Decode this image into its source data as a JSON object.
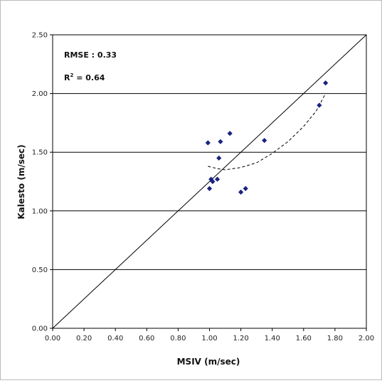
{
  "chart_data": {
    "type": "scatter",
    "xlabel": "MSIV (m/sec)",
    "ylabel": "Kalesto (m/sec)",
    "xlim": [
      0,
      2.0
    ],
    "ylim": [
      0,
      2.5
    ],
    "x_ticks": [
      "0.00",
      "0.20",
      "0.40",
      "0.60",
      "0.80",
      "1.00",
      "1.20",
      "1.40",
      "1.60",
      "1.80",
      "2.00"
    ],
    "y_ticks": [
      "0.00",
      "0.50",
      "1.00",
      "1.50",
      "2.00",
      "2.50"
    ],
    "grid": "horizontal",
    "annotations": {
      "rmse": "RMSE : 0.33",
      "r2_prefix": "R",
      "r2_sup": "2",
      "r2_value": " = 0.64"
    },
    "points": [
      {
        "x": 0.99,
        "y": 1.58
      },
      {
        "x": 1.0,
        "y": 1.19
      },
      {
        "x": 1.01,
        "y": 1.27
      },
      {
        "x": 1.02,
        "y": 1.25
      },
      {
        "x": 1.05,
        "y": 1.27
      },
      {
        "x": 1.06,
        "y": 1.45
      },
      {
        "x": 1.07,
        "y": 1.59
      },
      {
        "x": 1.13,
        "y": 1.66
      },
      {
        "x": 1.2,
        "y": 1.16
      },
      {
        "x": 1.23,
        "y": 1.19
      },
      {
        "x": 1.35,
        "y": 1.6
      },
      {
        "x": 1.7,
        "y": 1.9
      },
      {
        "x": 1.74,
        "y": 2.09
      }
    ],
    "identity_line": [
      [
        0,
        0
      ],
      [
        2.0,
        2.5
      ]
    ],
    "trend_curve": [
      [
        0.99,
        1.38
      ],
      [
        1.05,
        1.36
      ],
      [
        1.1,
        1.35
      ],
      [
        1.2,
        1.37
      ],
      [
        1.3,
        1.41
      ],
      [
        1.4,
        1.49
      ],
      [
        1.5,
        1.59
      ],
      [
        1.6,
        1.72
      ],
      [
        1.68,
        1.85
      ],
      [
        1.74,
        2.0
      ]
    ],
    "colors": {
      "points": "#1a237e",
      "lines": "#000000"
    }
  }
}
